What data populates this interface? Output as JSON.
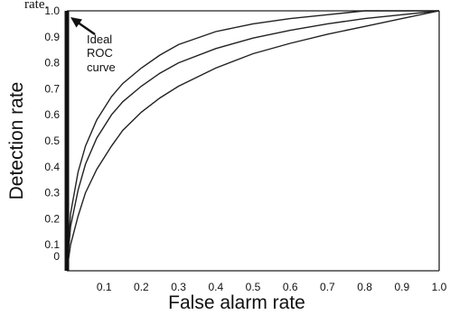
{
  "caption_fragment": "rate.",
  "chart_data": {
    "type": "line",
    "xlabel": "False alarm rate",
    "ylabel": "Detection rate",
    "xlim": [
      0,
      1.0
    ],
    "ylim": [
      0,
      1.0
    ],
    "x_ticks": [
      "0.1",
      "0.2",
      "0.3",
      "0.4",
      "0.5",
      "0.6",
      "0.7",
      "0.8",
      "0.9",
      "1.0"
    ],
    "y_ticks": [
      "0",
      "0.1",
      "0.2",
      "0.3",
      "0.4",
      "0.5",
      "0.6",
      "0.7",
      "0.8",
      "0.9",
      "1.0"
    ],
    "grid": false,
    "annotation": {
      "lines": [
        "Ideal",
        "ROC",
        "curve"
      ]
    },
    "series": [
      {
        "points": [
          [
            0,
            0
          ],
          [
            0.01,
            0.22
          ],
          [
            0.03,
            0.38
          ],
          [
            0.05,
            0.48
          ],
          [
            0.08,
            0.58
          ],
          [
            0.12,
            0.67
          ],
          [
            0.15,
            0.72
          ],
          [
            0.2,
            0.78
          ],
          [
            0.25,
            0.83
          ],
          [
            0.3,
            0.87
          ],
          [
            0.4,
            0.92
          ],
          [
            0.5,
            0.95
          ],
          [
            0.6,
            0.97
          ],
          [
            0.7,
            0.985
          ],
          [
            0.8,
            1.0
          ],
          [
            0.9,
            1.0
          ],
          [
            1.0,
            1.0
          ]
        ]
      },
      {
        "points": [
          [
            0,
            0
          ],
          [
            0.01,
            0.17
          ],
          [
            0.03,
            0.31
          ],
          [
            0.05,
            0.41
          ],
          [
            0.08,
            0.51
          ],
          [
            0.12,
            0.6
          ],
          [
            0.15,
            0.65
          ],
          [
            0.2,
            0.71
          ],
          [
            0.25,
            0.76
          ],
          [
            0.3,
            0.8
          ],
          [
            0.4,
            0.855
          ],
          [
            0.5,
            0.895
          ],
          [
            0.6,
            0.925
          ],
          [
            0.7,
            0.95
          ],
          [
            0.8,
            0.97
          ],
          [
            0.9,
            0.985
          ],
          [
            1.0,
            1.0
          ]
        ]
      },
      {
        "points": [
          [
            0,
            0
          ],
          [
            0.01,
            0.1
          ],
          [
            0.03,
            0.21
          ],
          [
            0.05,
            0.3
          ],
          [
            0.08,
            0.39
          ],
          [
            0.12,
            0.48
          ],
          [
            0.15,
            0.54
          ],
          [
            0.2,
            0.61
          ],
          [
            0.25,
            0.665
          ],
          [
            0.3,
            0.71
          ],
          [
            0.4,
            0.78
          ],
          [
            0.5,
            0.835
          ],
          [
            0.6,
            0.875
          ],
          [
            0.7,
            0.91
          ],
          [
            0.8,
            0.94
          ],
          [
            0.9,
            0.97
          ],
          [
            1.0,
            1.0
          ]
        ]
      }
    ]
  }
}
